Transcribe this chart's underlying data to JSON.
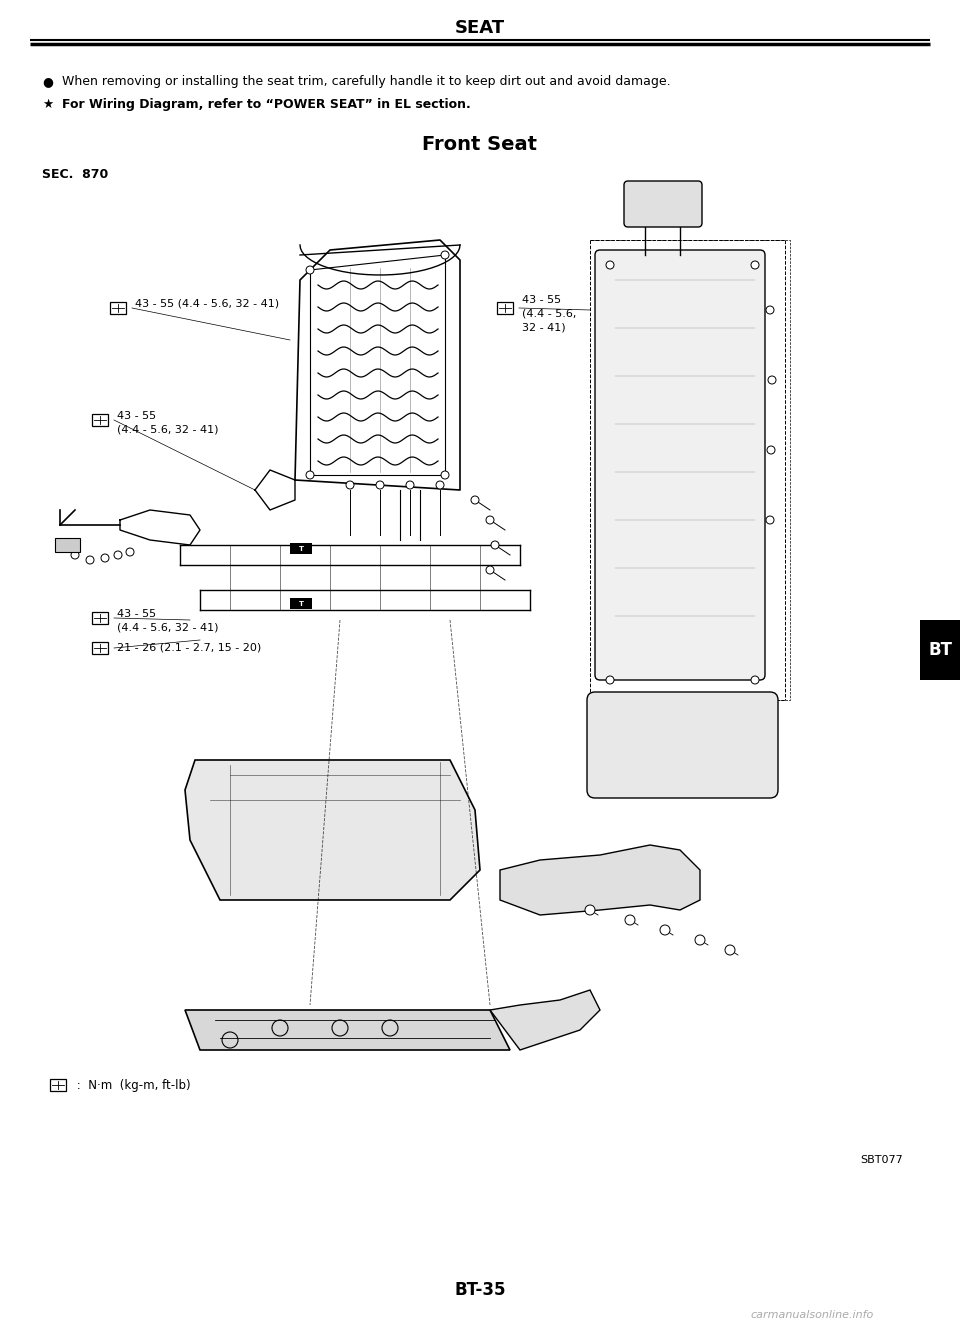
{
  "title": "SEAT",
  "subtitle": "Front Seat",
  "sec_label": "SEC.  870",
  "bullet1": "When removing or installing the seat trim, carefully handle it to keep dirt out and avoid damage.",
  "bullet2_normal": "For Wiring Diagram, refer to “",
  "bullet2_bold": "POWER SEAT",
  "bullet2_end": "” in EL section.",
  "page_num": "BT-35",
  "ref_code": "SBT077",
  "bt_label": "BT",
  "torque_note": " :  N·m  (kg-m, ft-lb)",
  "t1": "43 - 55 (4.4 - 5.6, 32 - 41)",
  "t2_line1": "43 - 55",
  "t2_line2": "(4.4 - 5.6,",
  "t2_line3": "32 - 41)",
  "t3_line1": "43 - 55",
  "t3_line2": "(4.4 - 5.6, 32 - 41)",
  "t4_line1": "43 - 55",
  "t4_line2": "(4.4 - 5.6, 32 - 41)",
  "t5": "21 - 26 (2.1 - 2.7, 15 - 20)",
  "bg_color": "#ffffff"
}
